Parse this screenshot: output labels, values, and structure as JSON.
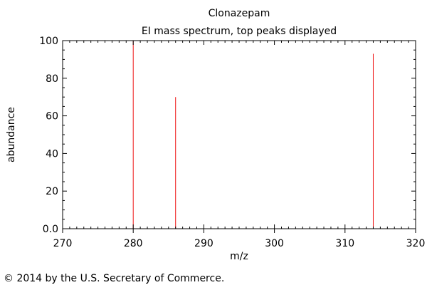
{
  "chart_data": {
    "type": "bar",
    "title": "Clonazepam",
    "subtitle": "EI mass spectrum, top peaks displayed",
    "xlabel": "m/z",
    "ylabel": "abundance",
    "xlim": [
      270,
      320
    ],
    "ylim": [
      0,
      100
    ],
    "x_ticks": [
      "270",
      "280",
      "290",
      "300",
      "310",
      "320"
    ],
    "y_ticks": [
      "0.0",
      "20",
      "40",
      "60",
      "80",
      "100"
    ],
    "grid": false,
    "peak_color": "#ee1111",
    "peaks": [
      {
        "mz": 280,
        "abundance": 100
      },
      {
        "mz": 286,
        "abundance": 70
      },
      {
        "mz": 314,
        "abundance": 93
      }
    ]
  },
  "footer": {
    "copyright": "© 2014 by the U.S. Secretary of Commerce."
  }
}
